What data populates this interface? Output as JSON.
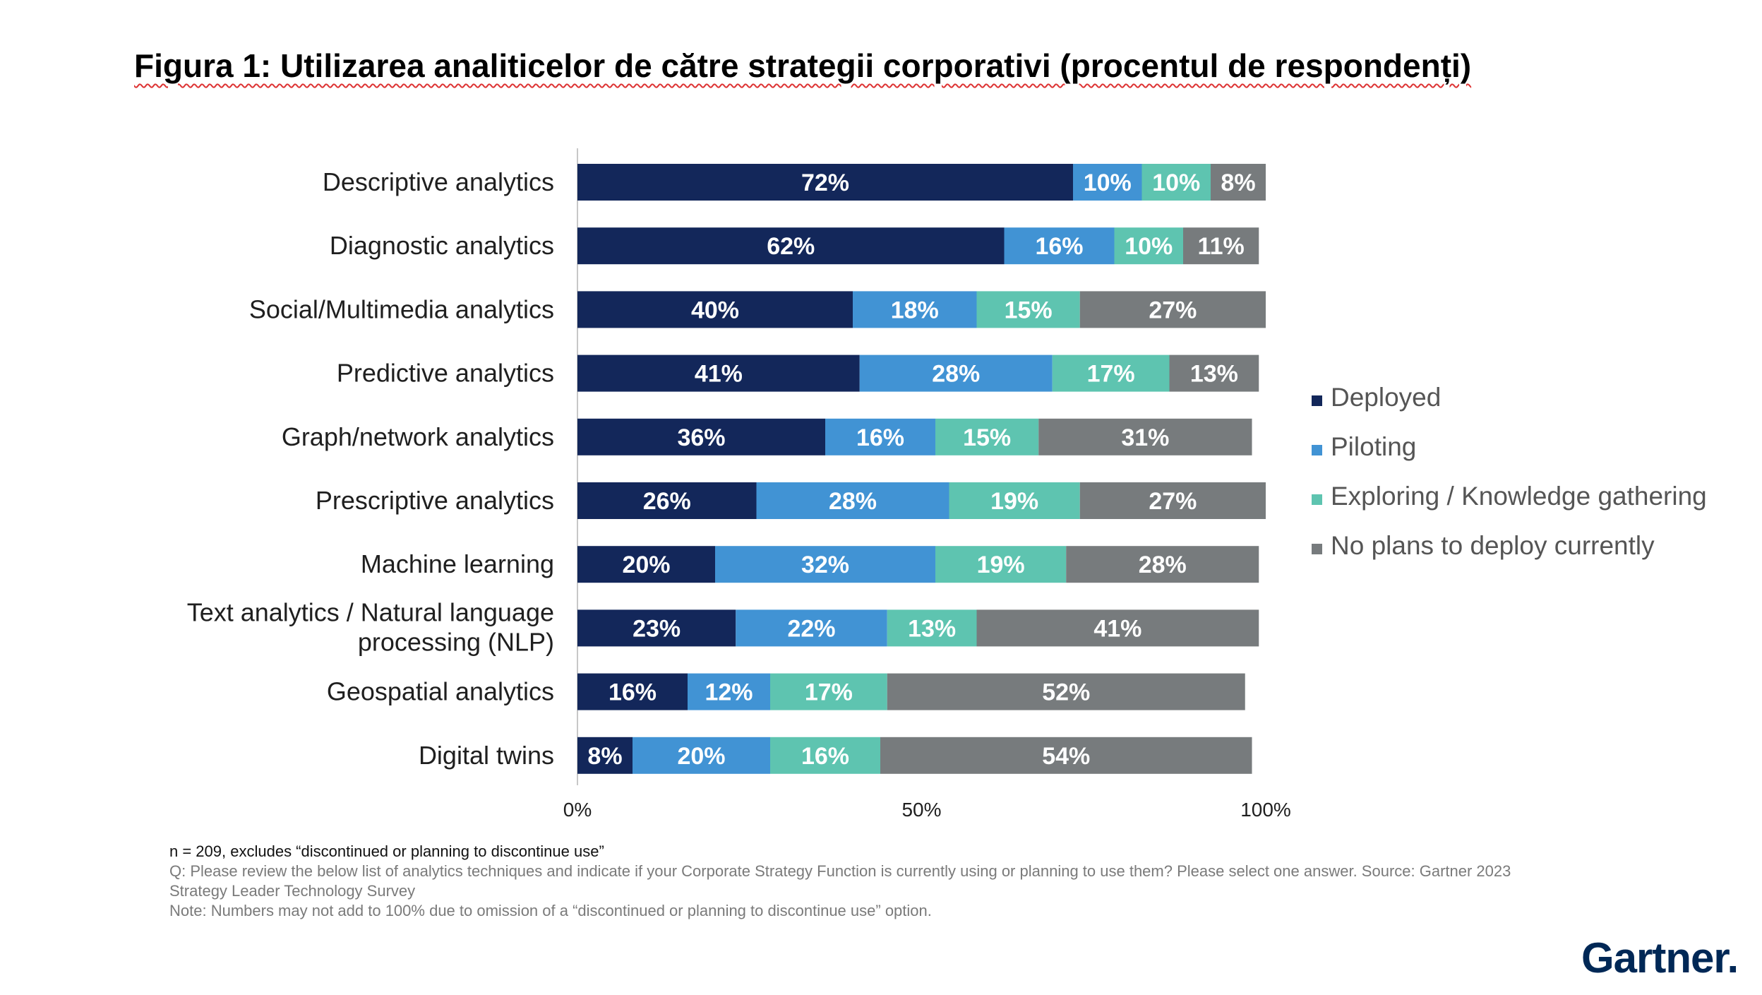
{
  "title": "Figura 1: Utilizarea analiticelor de către strategii corporativi (procentul de respondenți)",
  "chart_data": {
    "type": "bar",
    "orientation": "horizontal",
    "stacked": true,
    "xlim": [
      0,
      100
    ],
    "x_ticks": [
      "0%",
      "50%",
      "100%"
    ],
    "grid": false,
    "legend_position": "right",
    "categories": [
      [
        "Descriptive analytics"
      ],
      [
        "Diagnostic analytics"
      ],
      [
        "Social/Multimedia analytics"
      ],
      [
        "Predictive analytics"
      ],
      [
        "Graph/network analytics"
      ],
      [
        "Prescriptive analytics"
      ],
      [
        "Machine learning"
      ],
      [
        "Text analytics / Natural language",
        "processing (NLP)"
      ],
      [
        "Geospatial analytics"
      ],
      [
        "Digital twins"
      ]
    ],
    "series": [
      {
        "name": "Deployed",
        "color": "#13275a",
        "values": [
          72,
          62,
          40,
          41,
          36,
          26,
          20,
          23,
          16,
          8
        ]
      },
      {
        "name": "Piloting",
        "color": "#4193d4",
        "values": [
          10,
          16,
          18,
          28,
          16,
          28,
          32,
          22,
          12,
          20
        ]
      },
      {
        "name": "Exploring / Knowledge gathering",
        "color": "#5ec4b0",
        "values": [
          10,
          10,
          15,
          17,
          15,
          19,
          19,
          13,
          17,
          16
        ]
      },
      {
        "name": "No plans to deploy currently",
        "color": "#777b7d",
        "values": [
          8,
          11,
          27,
          13,
          31,
          27,
          28,
          41,
          52,
          54
        ]
      }
    ]
  },
  "footnotes": {
    "n": "n = 209, excludes “discontinued or planning to discontinue use”",
    "q_line1": "Q: Please review the below list of analytics techniques and indicate if your Corporate Strategy Function is currently using or planning to use them? Please select one answer. Source: Gartner 2023",
    "q_line2": "Strategy Leader Technology Survey",
    "note": "Note: Numbers may not add to 100% due to omission of a “discontinued or planning to discontinue use” option."
  },
  "logo": {
    "text": "Gartner",
    "mark": "."
  }
}
